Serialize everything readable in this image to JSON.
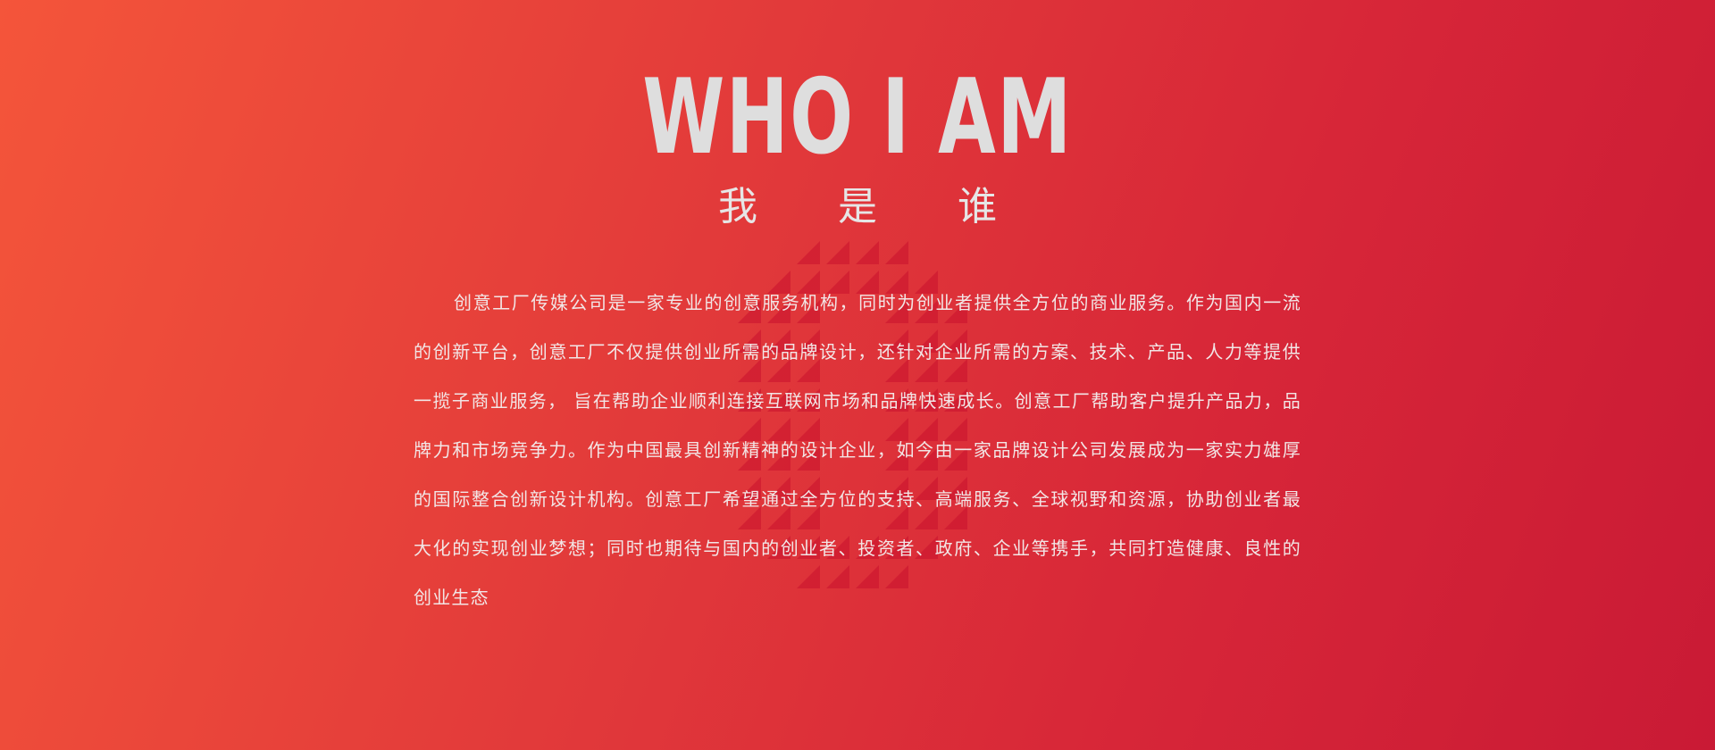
{
  "hero": {
    "title": "WHO I AM",
    "subtitle": "我是谁"
  },
  "about": {
    "paragraph": "创意工厂传媒公司是一家专业的创意服务机构，同时为创业者提供全方位的商业服务。作为国内一流的创新平台，创意工厂不仅提供创业所需的品牌设计，还针对企业所需的方案、技术、产品、人力等提供一揽子商业服务， 旨在帮助企业顺利连接互联网市场和品牌快速成长。创意工厂帮助客户提升产品力，品牌力和市场竞争力。作为中国最具创新精神的设计企业，如今由一家品牌设计公司发展成为一家实力雄厚的国际整合创新设计机构。创意工厂希望通过全方位的支持、高端服务、全球视野和资源，协助创业者最大化的实现创业梦想；同时也期待与国内的创业者、投资者、政府、企业等携手，共同打造健康、良性的创业生态"
  },
  "colors": {
    "background_start": "#f4553a",
    "background_end": "#c91a35",
    "title": "#dedede",
    "pattern": "#c8102e"
  }
}
